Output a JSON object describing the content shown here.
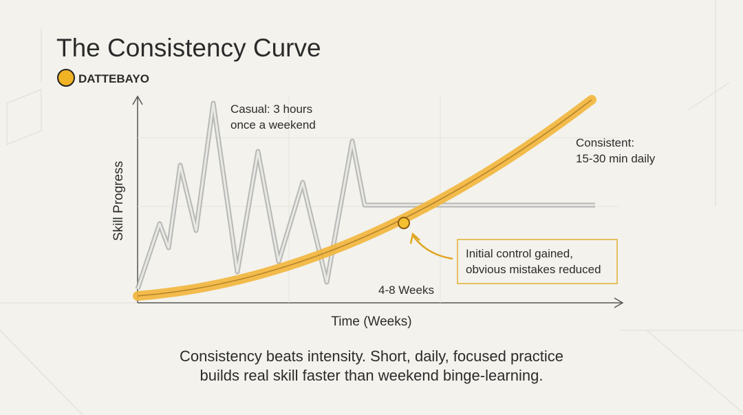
{
  "header": {
    "title": "The Consistency Curve",
    "brand": "DATTEBAYO"
  },
  "chart": {
    "y_label": "Skill Progress",
    "x_label": "Time (Weeks)",
    "casual_label": [
      "Casual: 3 hours",
      "once a weekend"
    ],
    "consistent_label": [
      "Consistent:",
      "15-30 min daily"
    ],
    "callout": [
      "Initial control gained,",
      "obvious mistakes reduced"
    ],
    "period_label": "4-8 Weeks"
  },
  "caption": [
    "Consistency beats intensity. Short, daily, focused practice",
    "builds real skill faster than weekend binge-learning."
  ]
}
